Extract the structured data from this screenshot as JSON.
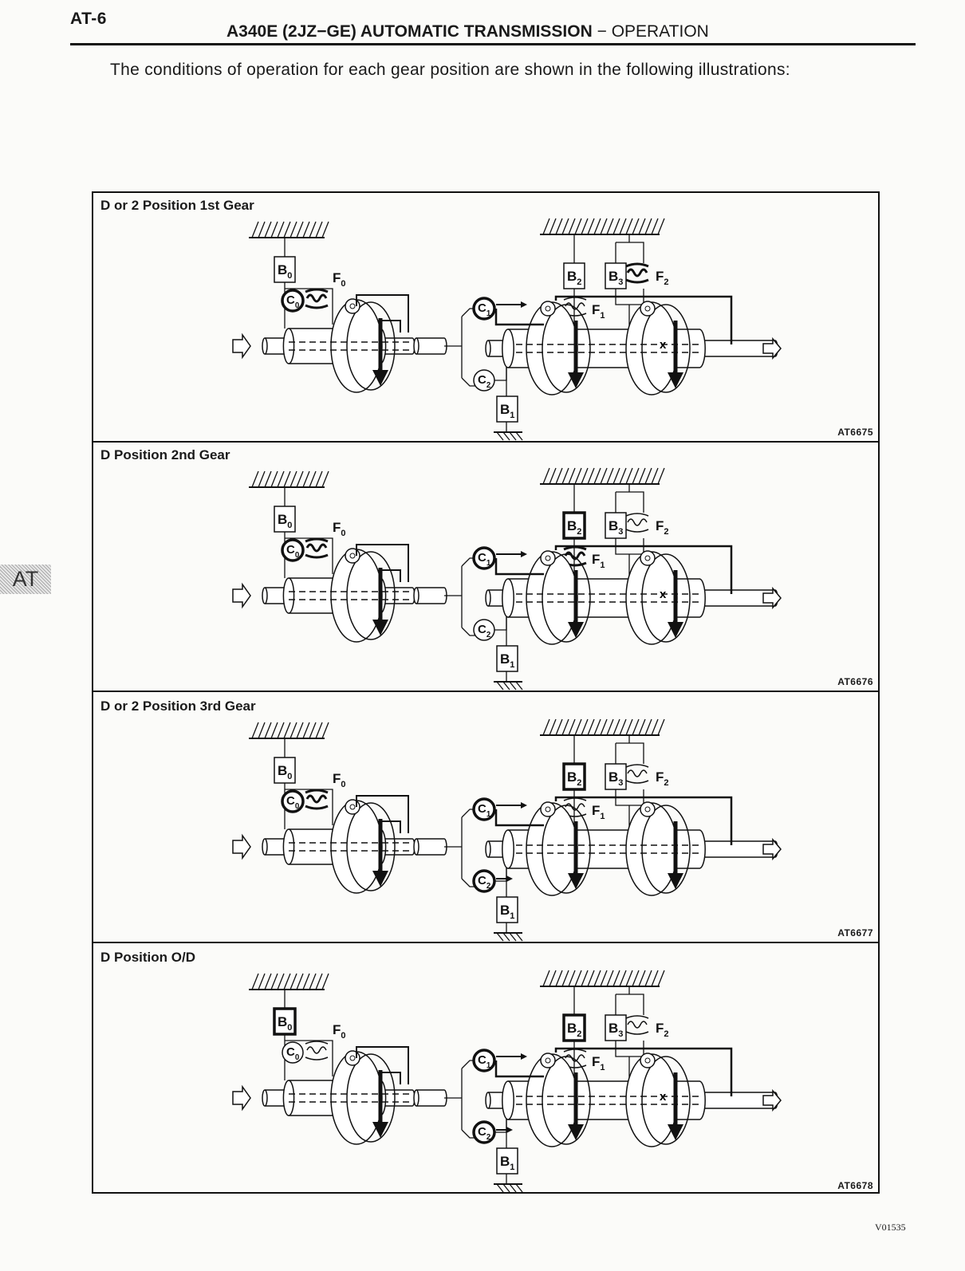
{
  "page": {
    "number": "AT-6",
    "header_bold": "A340E (2JZ−GE) AUTOMATIC TRANSMISSION",
    "header_rest": " − OPERATION",
    "intro": "The conditions of operation for each gear position are shown in the following illustrations:",
    "side_tab": "AT",
    "doc_id": "V01535"
  },
  "component_labels": [
    "B0",
    "F0",
    "C0",
    "B2",
    "B3",
    "F2",
    "F1",
    "C1",
    "C2",
    "B1"
  ],
  "panels": [
    {
      "title": "D or 2 Position 1st Gear",
      "code": "AT6675",
      "active": [
        "C0",
        "F0",
        "C1",
        "F2"
      ],
      "locked_mark": "x"
    },
    {
      "title": "D Position 2nd Gear",
      "code": "AT6676",
      "active": [
        "C0",
        "F0",
        "C1",
        "B2",
        "F1"
      ],
      "locked_mark": "x"
    },
    {
      "title": "D or 2 Position 3rd Gear",
      "code": "AT6677",
      "active": [
        "C0",
        "F0",
        "C1",
        "C2",
        "B2"
      ],
      "locked_mark": ""
    },
    {
      "title": "D Position O/D",
      "code": "AT6678",
      "active": [
        "B0",
        "C1",
        "C2",
        "B2"
      ],
      "locked_mark": "x"
    }
  ]
}
